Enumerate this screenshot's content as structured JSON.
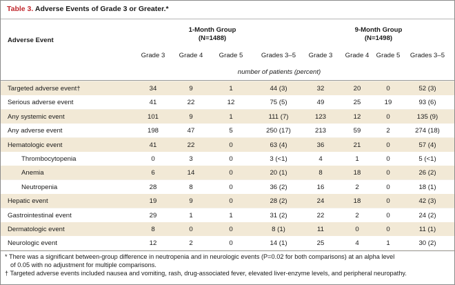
{
  "table_label": "Table 3.",
  "table_title": "Adverse Events of Grade 3 or Greater.*",
  "row_header": "Adverse Event",
  "groups": [
    {
      "name": "1-Month Group",
      "n": "(N=1488)"
    },
    {
      "name": "9-Month Group",
      "n": "(N=1498)"
    }
  ],
  "columns": [
    "Grade 3",
    "Grade 4",
    "Grade 5",
    "Grades 3–5",
    "Grade 3",
    "Grade 4",
    "Grade 5",
    "Grades 3–5"
  ],
  "units_caption": "number of patients (percent)",
  "rows": [
    {
      "label": "Targeted adverse event†",
      "values": [
        "34",
        "9",
        "1",
        "44 (3)",
        "32",
        "20",
        "0",
        "52 (3)"
      ]
    },
    {
      "label": "Serious adverse event",
      "values": [
        "41",
        "22",
        "12",
        "75 (5)",
        "49",
        "25",
        "19",
        "93 (6)"
      ]
    },
    {
      "label": "Any systemic event",
      "values": [
        "101",
        "9",
        "1",
        "111 (7)",
        "123",
        "12",
        "0",
        "135 (9)"
      ]
    },
    {
      "label": "Any adverse event",
      "values": [
        "198",
        "47",
        "5",
        "250 (17)",
        "213",
        "59",
        "2",
        "274 (18)"
      ]
    },
    {
      "label": "Hematologic event",
      "values": [
        "41",
        "22",
        "0",
        "63 (4)",
        "36",
        "21",
        "0",
        "57 (4)"
      ]
    },
    {
      "label": "Thrombocytopenia",
      "values": [
        "0",
        "3",
        "0",
        "3 (<1)",
        "4",
        "1",
        "0",
        "5 (<1)"
      ]
    },
    {
      "label": "Anemia",
      "values": [
        "6",
        "14",
        "0",
        "20 (1)",
        "8",
        "18",
        "0",
        "26 (2)"
      ]
    },
    {
      "label": "Neutropenia",
      "values": [
        "28",
        "8",
        "0",
        "36 (2)",
        "16",
        "2",
        "0",
        "18 (1)"
      ]
    },
    {
      "label": "Hepatic event",
      "values": [
        "19",
        "9",
        "0",
        "28 (2)",
        "24",
        "18",
        "0",
        "42 (3)"
      ]
    },
    {
      "label": "Gastrointestinal event",
      "values": [
        "29",
        "1",
        "1",
        "31 (2)",
        "22",
        "2",
        "0",
        "24 (2)"
      ]
    },
    {
      "label": "Dermatologic event",
      "values": [
        "8",
        "0",
        "0",
        "8 (1)",
        "11",
        "0",
        "0",
        "11 (1)"
      ]
    },
    {
      "label": "Neurologic event",
      "values": [
        "12",
        "2",
        "0",
        "14 (1)",
        "25",
        "4",
        "1",
        "30 (2)"
      ]
    }
  ],
  "footnotes": [
    "* There was a significant between-group difference in neutropenia and in neurologic events (P=0.02 for both comparisons) at an alpha level",
    "of 0.05 with no adjustment for multiple comparisons.",
    "† Targeted adverse events included nausea and vomiting, rash, drug-associated fever, elevated liver-enzyme levels, and peripheral neuropathy."
  ],
  "colors": {
    "label_red": "#c0272d",
    "stripe": "#f2e9d6",
    "panel": "#f3efe6"
  }
}
